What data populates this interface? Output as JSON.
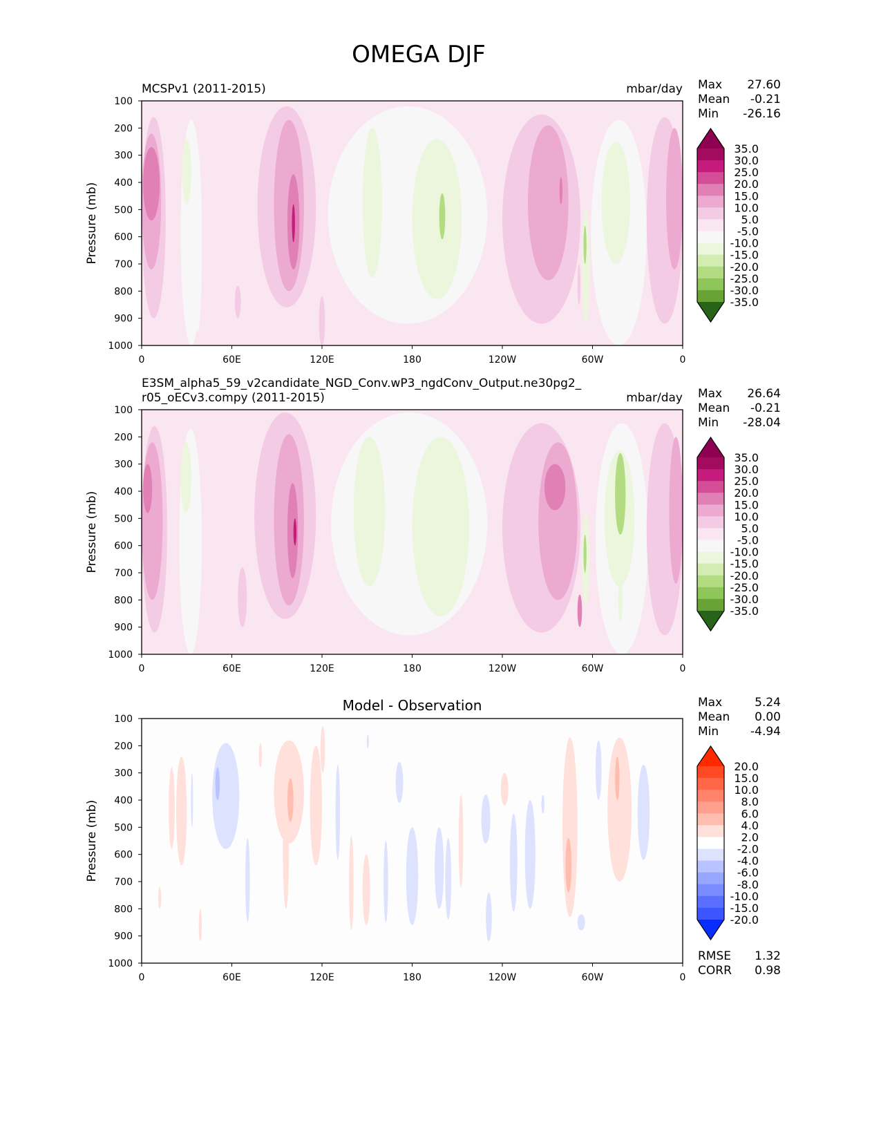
{
  "title": "OMEGA DJF",
  "chart_data": [
    {
      "type": "heatmap",
      "title_left": "MCSPv1 (2011-2015)",
      "title_right": "mbar/day",
      "title_center": "",
      "ylabel": "Pressure (mb)",
      "xticks": [
        "0",
        "60E",
        "120E",
        "180",
        "120W",
        "60W",
        "0"
      ],
      "yticks": [
        "100",
        "200",
        "300",
        "400",
        "500",
        "600",
        "700",
        "800",
        "900",
        "1000"
      ],
      "xlim": [
        0,
        360
      ],
      "ylim": [
        100,
        1000
      ],
      "stats": {
        "Max": "27.60",
        "Mean": "-0.21",
        "Min": "-26.16"
      },
      "extra_stats": {},
      "colorbar": {
        "levels": [
          "35.0",
          "30.0",
          "25.0",
          "20.0",
          "15.0",
          "10.0",
          "5.0",
          "-5.0",
          "-10.0",
          "-15.0",
          "-20.0",
          "-25.0",
          "-30.0",
          "-35.0"
        ],
        "colors": [
          "#8e0152",
          "#a30b5e",
          "#c51b7d",
          "#d44d97",
          "#e080b4",
          "#ecaad0",
          "#f4cbe4",
          "#fae6f1",
          "#f7f7f7",
          "#ebf6dc",
          "#d3ecb1",
          "#b3db82",
          "#8ec65a",
          "#68a435",
          "#4c8c24",
          "#2f6b1d",
          "#276419"
        ]
      },
      "features": [
        {
          "lon": [
            0,
            16
          ],
          "p": [
            160,
            900
          ],
          "v": 7
        },
        {
          "lon": [
            0,
            13
          ],
          "p": [
            220,
            720
          ],
          "v": 12
        },
        {
          "lon": [
            1,
            12
          ],
          "p": [
            270,
            540
          ],
          "v": 18
        },
        {
          "lon": [
            26,
            40
          ],
          "p": [
            170,
            1000
          ],
          "v": -7
        },
        {
          "lon": [
            27,
            33
          ],
          "p": [
            240,
            480
          ],
          "v": -12
        },
        {
          "lon": [
            35,
            40
          ],
          "p": [
            290,
            950
          ],
          "v": -7
        },
        {
          "lon": [
            77,
            116
          ],
          "p": [
            120,
            860
          ],
          "v": 7
        },
        {
          "lon": [
            88,
            108
          ],
          "p": [
            170,
            800
          ],
          "v": 12
        },
        {
          "lon": [
            97,
            105
          ],
          "p": [
            370,
            720
          ],
          "v": 18
        },
        {
          "lon": [
            100,
            102
          ],
          "p": [
            480,
            620
          ],
          "v": 28
        },
        {
          "lon": [
            62,
            66
          ],
          "p": [
            780,
            900
          ],
          "v": 7
        },
        {
          "lon": [
            118,
            122
          ],
          "p": [
            820,
            1000
          ],
          "v": 7
        },
        {
          "lon": [
            124,
            230
          ],
          "p": [
            120,
            920
          ],
          "v": -7
        },
        {
          "lon": [
            147,
            160
          ],
          "p": [
            200,
            750
          ],
          "v": -12
        },
        {
          "lon": [
            180,
            213
          ],
          "p": [
            240,
            830
          ],
          "v": -12
        },
        {
          "lon": [
            198,
            202
          ],
          "p": [
            440,
            610
          ],
          "v": -20
        },
        {
          "lon": [
            240,
            292
          ],
          "p": [
            150,
            920
          ],
          "v": 7
        },
        {
          "lon": [
            257,
            284
          ],
          "p": [
            190,
            760
          ],
          "v": 12
        },
        {
          "lon": [
            278,
            280
          ],
          "p": [
            380,
            480
          ],
          "v": 18
        },
        {
          "lon": [
            290,
            292
          ],
          "p": [
            700,
            850
          ],
          "v": 7
        },
        {
          "lon": [
            293,
            298
          ],
          "p": [
            500,
            920
          ],
          "v": -12
        },
        {
          "lon": [
            294,
            296
          ],
          "p": [
            560,
            700
          ],
          "v": -20
        },
        {
          "lon": [
            299,
            336
          ],
          "p": [
            170,
            1000
          ],
          "v": -7
        },
        {
          "lon": [
            306,
            325
          ],
          "p": [
            250,
            700
          ],
          "v": -12
        },
        {
          "lon": [
            336,
            360
          ],
          "p": [
            160,
            920
          ],
          "v": 7
        },
        {
          "lon": [
            349,
            360
          ],
          "p": [
            200,
            720
          ],
          "v": 12
        }
      ]
    },
    {
      "type": "heatmap",
      "title_left": "E3SM_alpha5_59_v2candidate_NGD_Conv.wP3_ngdConv_Output.ne30pg2_r05_oECv3.compy (2011-2015)",
      "title_right": "mbar/day",
      "title_center": "",
      "ylabel": "Pressure (mb)",
      "xticks": [
        "0",
        "60E",
        "120E",
        "180",
        "120W",
        "60W",
        "0"
      ],
      "yticks": [
        "100",
        "200",
        "300",
        "400",
        "500",
        "600",
        "700",
        "800",
        "900",
        "1000"
      ],
      "xlim": [
        0,
        360
      ],
      "ylim": [
        100,
        1000
      ],
      "stats": {
        "Max": "26.64",
        "Mean": "-0.21",
        "Min": "-28.04"
      },
      "extra_stats": {},
      "colorbar": {
        "levels": [
          "35.0",
          "30.0",
          "25.0",
          "20.0",
          "15.0",
          "10.0",
          "5.0",
          "-5.0",
          "-10.0",
          "-15.0",
          "-20.0",
          "-25.0",
          "-30.0",
          "-35.0"
        ],
        "colors": [
          "#8e0152",
          "#a30b5e",
          "#c51b7d",
          "#d44d97",
          "#e080b4",
          "#ecaad0",
          "#f4cbe4",
          "#fae6f1",
          "#f7f7f7",
          "#ebf6dc",
          "#d3ecb1",
          "#b3db82",
          "#8ec65a",
          "#68a435",
          "#4c8c24",
          "#2f6b1d",
          "#276419"
        ]
      },
      "features": [
        {
          "lon": [
            0,
            17
          ],
          "p": [
            160,
            920
          ],
          "v": 7
        },
        {
          "lon": [
            0,
            14
          ],
          "p": [
            220,
            800
          ],
          "v": 12
        },
        {
          "lon": [
            1,
            7
          ],
          "p": [
            300,
            480
          ],
          "v": 18
        },
        {
          "lon": [
            25,
            40
          ],
          "p": [
            170,
            1000
          ],
          "v": -7
        },
        {
          "lon": [
            26,
            33
          ],
          "p": [
            220,
            480
          ],
          "v": -12
        },
        {
          "lon": [
            64,
            70
          ],
          "p": [
            680,
            900
          ],
          "v": 7
        },
        {
          "lon": [
            75,
            116
          ],
          "p": [
            110,
            870
          ],
          "v": 7
        },
        {
          "lon": [
            88,
            108
          ],
          "p": [
            190,
            820
          ],
          "v": 12
        },
        {
          "lon": [
            97,
            104
          ],
          "p": [
            370,
            720
          ],
          "v": 18
        },
        {
          "lon": [
            101,
            103
          ],
          "p": [
            500,
            600
          ],
          "v": 28
        },
        {
          "lon": [
            126,
            230
          ],
          "p": [
            110,
            930
          ],
          "v": -7
        },
        {
          "lon": [
            141,
            162
          ],
          "p": [
            200,
            750
          ],
          "v": -12
        },
        {
          "lon": [
            180,
            218
          ],
          "p": [
            200,
            860
          ],
          "v": -12
        },
        {
          "lon": [
            240,
            292
          ],
          "p": [
            150,
            920
          ],
          "v": 7
        },
        {
          "lon": [
            264,
            290
          ],
          "p": [
            220,
            800
          ],
          "v": 12
        },
        {
          "lon": [
            268,
            282
          ],
          "p": [
            300,
            470
          ],
          "v": 18
        },
        {
          "lon": [
            290,
            293
          ],
          "p": [
            780,
            900
          ],
          "v": 18
        },
        {
          "lon": [
            293,
            298
          ],
          "p": [
            480,
            820
          ],
          "v": -12
        },
        {
          "lon": [
            294,
            296
          ],
          "p": [
            560,
            700
          ],
          "v": -20
        },
        {
          "lon": [
            302,
            337
          ],
          "p": [
            150,
            1000
          ],
          "v": -7
        },
        {
          "lon": [
            308,
            328
          ],
          "p": [
            250,
            750
          ],
          "v": -12
        },
        {
          "lon": [
            315,
            322
          ],
          "p": [
            260,
            560
          ],
          "v": -20
        },
        {
          "lon": [
            317,
            320
          ],
          "p": [
            720,
            880
          ],
          "v": -12
        },
        {
          "lon": [
            336,
            360
          ],
          "p": [
            150,
            930
          ],
          "v": 7
        },
        {
          "lon": [
            351,
            360
          ],
          "p": [
            200,
            740
          ],
          "v": 12
        }
      ]
    },
    {
      "type": "heatmap",
      "title_left": "",
      "title_right": "",
      "title_center": "Model - Observation",
      "ylabel": "Pressure (mb)",
      "xticks": [
        "0",
        "60E",
        "120E",
        "180",
        "120W",
        "60W",
        "0"
      ],
      "yticks": [
        "100",
        "200",
        "300",
        "400",
        "500",
        "600",
        "700",
        "800",
        "900",
        "1000"
      ],
      "xlim": [
        0,
        360
      ],
      "ylim": [
        100,
        1000
      ],
      "stats": {
        "Max": "5.24",
        "Mean": "0.00",
        "Min": "-4.94"
      },
      "extra_stats": {
        "RMSE": "1.32",
        "CORR": "0.98"
      },
      "colorbar": {
        "levels": [
          "20.0",
          "15.0",
          "10.0",
          "8.0",
          "6.0",
          "4.0",
          "2.0",
          "-2.0",
          "-4.0",
          "-6.0",
          "-8.0",
          "-10.0",
          "-15.0",
          "-20.0"
        ],
        "colors": [
          "#ff2a00",
          "#ff4a24",
          "#ff6747",
          "#ff846b",
          "#ffa08f",
          "#ffbdb0",
          "#ffe0da",
          "#ffffff",
          "#dde2ff",
          "#b8c3ff",
          "#97a6ff",
          "#7a8cff",
          "#5a6eff",
          "#3c55ff",
          "#0a2dff"
        ]
      },
      "features": [
        {
          "lon": [
            18,
            22
          ],
          "p": [
            280,
            580
          ],
          "v": 3
        },
        {
          "lon": [
            23,
            30
          ],
          "p": [
            240,
            640
          ],
          "v": 3
        },
        {
          "lon": [
            11,
            13
          ],
          "p": [
            720,
            800
          ],
          "v": 3
        },
        {
          "lon": [
            38,
            40
          ],
          "p": [
            800,
            920
          ],
          "v": 3
        },
        {
          "lon": [
            33,
            34
          ],
          "p": [
            300,
            500
          ],
          "v": -3
        },
        {
          "lon": [
            47,
            65
          ],
          "p": [
            190,
            580
          ],
          "v": -3
        },
        {
          "lon": [
            49,
            52
          ],
          "p": [
            280,
            400
          ],
          "v": -5
        },
        {
          "lon": [
            69,
            72
          ],
          "p": [
            540,
            850
          ],
          "v": -3
        },
        {
          "lon": [
            78,
            80
          ],
          "p": [
            190,
            280
          ],
          "v": 3
        },
        {
          "lon": [
            88,
            108
          ],
          "p": [
            180,
            560
          ],
          "v": 3
        },
        {
          "lon": [
            94,
            98
          ],
          "p": [
            360,
            800
          ],
          "v": 3
        },
        {
          "lon": [
            97,
            101
          ],
          "p": [
            320,
            480
          ],
          "v": 5
        },
        {
          "lon": [
            112,
            120
          ],
          "p": [
            200,
            640
          ],
          "v": 3
        },
        {
          "lon": [
            119,
            122
          ],
          "p": [
            130,
            300
          ],
          "v": 3
        },
        {
          "lon": [
            129,
            132
          ],
          "p": [
            270,
            620
          ],
          "v": -3
        },
        {
          "lon": [
            147,
            152
          ],
          "p": [
            600,
            860
          ],
          "v": 3
        },
        {
          "lon": [
            138,
            141
          ],
          "p": [
            530,
            880
          ],
          "v": 3
        },
        {
          "lon": [
            150,
            151
          ],
          "p": [
            160,
            210
          ],
          "v": -3
        },
        {
          "lon": [
            169,
            174
          ],
          "p": [
            260,
            410
          ],
          "v": -3
        },
        {
          "lon": [
            161,
            164
          ],
          "p": [
            550,
            850
          ],
          "v": -3
        },
        {
          "lon": [
            176,
            184
          ],
          "p": [
            500,
            860
          ],
          "v": -3
        },
        {
          "lon": [
            195,
            201
          ],
          "p": [
            500,
            800
          ],
          "v": -3
        },
        {
          "lon": [
            202,
            206
          ],
          "p": [
            540,
            840
          ],
          "v": -3
        },
        {
          "lon": [
            211,
            214
          ],
          "p": [
            380,
            720
          ],
          "v": 3
        },
        {
          "lon": [
            226,
            232
          ],
          "p": [
            380,
            560
          ],
          "v": -3
        },
        {
          "lon": [
            229,
            233
          ],
          "p": [
            740,
            920
          ],
          "v": -3
        },
        {
          "lon": [
            239,
            244
          ],
          "p": [
            300,
            420
          ],
          "v": 3
        },
        {
          "lon": [
            245,
            250
          ],
          "p": [
            450,
            810
          ],
          "v": -3
        },
        {
          "lon": [
            255,
            262
          ],
          "p": [
            400,
            800
          ],
          "v": -3
        },
        {
          "lon": [
            266,
            268
          ],
          "p": [
            380,
            450
          ],
          "v": -3
        },
        {
          "lon": [
            280,
            290
          ],
          "p": [
            170,
            830
          ],
          "v": 3
        },
        {
          "lon": [
            282,
            286
          ],
          "p": [
            540,
            740
          ],
          "v": 5
        },
        {
          "lon": [
            290,
            295
          ],
          "p": [
            820,
            880
          ],
          "v": -3
        },
        {
          "lon": [
            302,
            306
          ],
          "p": [
            180,
            400
          ],
          "v": -3
        },
        {
          "lon": [
            310,
            326
          ],
          "p": [
            170,
            700
          ],
          "v": 3
        },
        {
          "lon": [
            315,
            318
          ],
          "p": [
            240,
            400
          ],
          "v": 5
        },
        {
          "lon": [
            330,
            338
          ],
          "p": [
            270,
            620
          ],
          "v": -3
        }
      ]
    }
  ]
}
